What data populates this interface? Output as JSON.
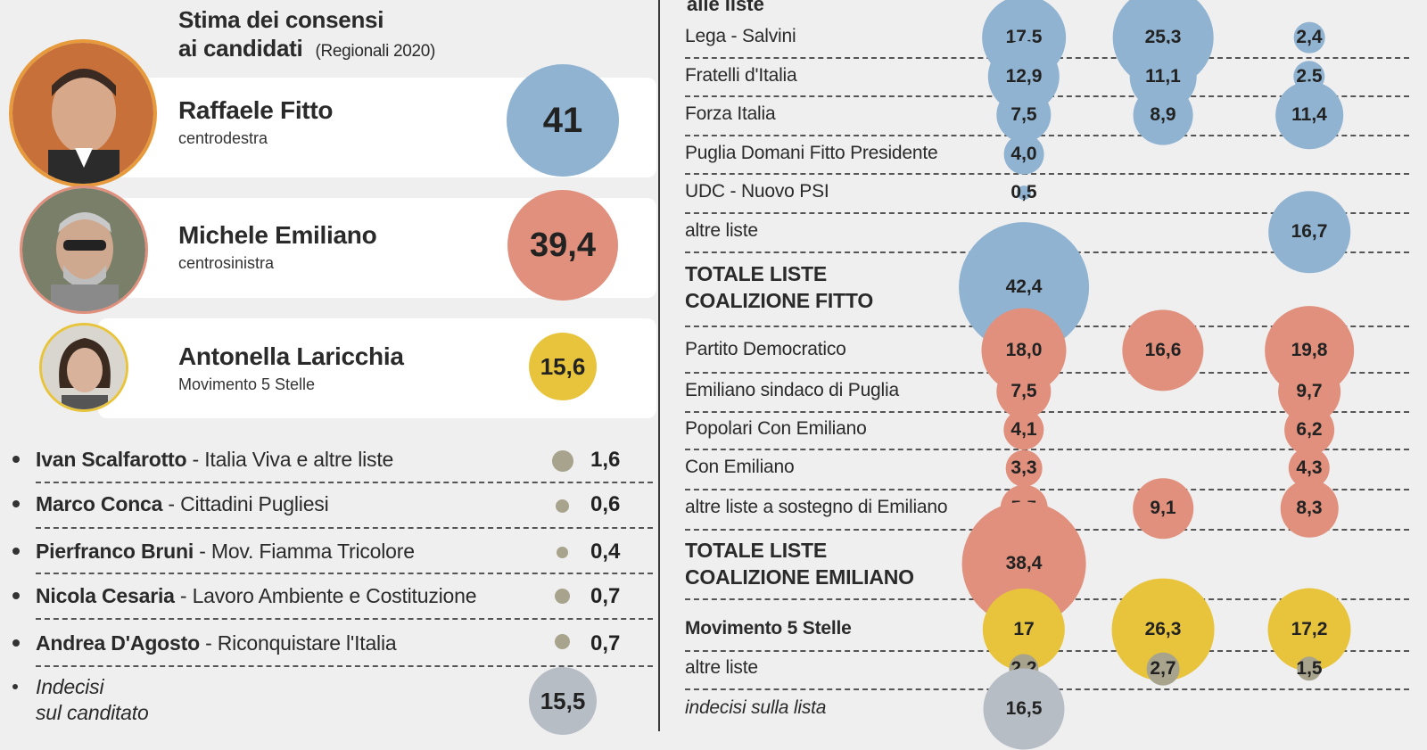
{
  "colors": {
    "fitto": "#8fb3d1",
    "emiliano": "#e0907c",
    "m5s": "#e8c43c",
    "minor": "#a8a38c",
    "undecided": "#b7bdc4"
  },
  "left": {
    "title_line1": "Stima dei consensi",
    "title_line2": "ai candidati",
    "title_sub": "(Regionali 2020)",
    "candidates": [
      {
        "name": "Raffaele Fitto",
        "party": "centrodestra",
        "value": "41",
        "color_key": "fitto"
      },
      {
        "name": "Michele Emiliano",
        "party": "centrosinistra",
        "value": "39,4",
        "color_key": "emiliano"
      },
      {
        "name": "Antonella Laricchia",
        "party": "Movimento 5 Stelle",
        "value": "15,6",
        "color_key": "m5s"
      }
    ],
    "minor_candidates": [
      {
        "name": "Ivan Scalfarotto",
        "list": " - Italia Viva e altre liste",
        "value": "1,6"
      },
      {
        "name": "Marco Conca",
        "list": " - Cittadini Pugliesi",
        "value": "0,6"
      },
      {
        "name": "Pierfranco Bruni",
        "list": " - Mov. Fiamma Tricolore",
        "value": "0,4"
      },
      {
        "name": "Nicola Cesaria",
        "list": " - Lavoro Ambiente e Costituzione",
        "value": "0,7"
      },
      {
        "name": "Andrea D'Agosto",
        "list": " - Riconquistare l'Italia",
        "value": "0,7"
      }
    ],
    "undecided": {
      "line1": "Indecisi",
      "line2": "sul canditato",
      "value": "15,5"
    }
  },
  "right": {
    "header": "alle liste"
  },
  "chart_data": [
    {
      "type": "bubble",
      "title": "Stima dei consensi ai candidati (Regionali 2020)",
      "categories": [
        "Raffaele Fitto",
        "Michele Emiliano",
        "Antonella Laricchia",
        "Ivan Scalfarotto",
        "Marco Conca",
        "Pierfranco Bruni",
        "Nicola Cesaria",
        "Andrea D'Agosto",
        "Indecisi sul canditato"
      ],
      "values": [
        41,
        39.4,
        15.6,
        1.6,
        0.6,
        0.4,
        0.7,
        0.7,
        15.5
      ]
    },
    {
      "type": "bubble",
      "title": "alle liste",
      "columns": 3,
      "rows": [
        {
          "label": "Lega - Salvini",
          "group": "fitto",
          "values": [
            17.5,
            25.3,
            2.4
          ],
          "labels": [
            "17,5",
            "25,3",
            "2,4"
          ]
        },
        {
          "label": "Fratelli d'Italia",
          "group": "fitto",
          "values": [
            12.9,
            11.1,
            2.5
          ],
          "labels": [
            "12,9",
            "11,1",
            "2,5"
          ]
        },
        {
          "label": "Forza Italia",
          "group": "fitto",
          "values": [
            7.5,
            8.9,
            11.4
          ],
          "labels": [
            "7,5",
            "8,9",
            "11,4"
          ]
        },
        {
          "label": "Puglia Domani Fitto Presidente",
          "group": "fitto",
          "values": [
            4.0,
            null,
            null
          ],
          "labels": [
            "4,0",
            "",
            ""
          ]
        },
        {
          "label": "UDC - Nuovo PSI",
          "group": "fitto",
          "values": [
            0.5,
            null,
            null
          ],
          "labels": [
            "0,5",
            "",
            ""
          ]
        },
        {
          "label": "altre liste",
          "group": "fitto",
          "values": [
            null,
            null,
            16.7
          ],
          "labels": [
            "",
            "",
            "16,7"
          ]
        },
        {
          "label": "TOTALE LISTE COALIZIONE FITTO",
          "group": "fitto",
          "bold": true,
          "values": [
            42.4,
            null,
            null
          ],
          "labels": [
            "42,4",
            "",
            ""
          ]
        },
        {
          "label": "Partito Democratico",
          "group": "emiliano",
          "values": [
            18.0,
            16.6,
            19.8
          ],
          "labels": [
            "18,0",
            "16,6",
            "19,8"
          ]
        },
        {
          "label": "Emiliano sindaco di Puglia",
          "group": "emiliano",
          "values": [
            7.5,
            null,
            9.7
          ],
          "labels": [
            "7,5",
            "",
            "9,7"
          ]
        },
        {
          "label": "Popolari Con Emiliano",
          "group": "emiliano",
          "values": [
            4.1,
            null,
            6.2
          ],
          "labels": [
            "4,1",
            "",
            "6,2"
          ]
        },
        {
          "label": "Con Emiliano",
          "group": "emiliano",
          "values": [
            3.3,
            null,
            4.3
          ],
          "labels": [
            "3,3",
            "",
            "4,3"
          ]
        },
        {
          "label": "altre liste a sostegno di Emiliano",
          "group": "emiliano",
          "values": [
            5.5,
            9.1,
            8.3
          ],
          "labels": [
            "5,5",
            "9,1",
            "8,3"
          ]
        },
        {
          "label": "TOTALE LISTE COALIZIONE EMILIANO",
          "group": "emiliano",
          "bold": true,
          "values": [
            38.4,
            null,
            null
          ],
          "labels": [
            "38,4",
            "",
            ""
          ]
        },
        {
          "label": "Movimento 5 Stelle",
          "group": "m5s",
          "boldLabel": true,
          "values": [
            17,
            26.3,
            17.2
          ],
          "labels": [
            "17",
            "26,3",
            "17,2"
          ]
        },
        {
          "label": "altre liste",
          "group": "minor",
          "values": [
            2.2,
            2.7,
            1.5
          ],
          "labels": [
            "2,2",
            "2,7",
            "1,5"
          ]
        },
        {
          "label": "indecisi sulla lista",
          "group": "undecided",
          "italic": true,
          "values": [
            16.5,
            null,
            null
          ],
          "labels": [
            "16,5",
            "",
            ""
          ]
        }
      ]
    }
  ]
}
